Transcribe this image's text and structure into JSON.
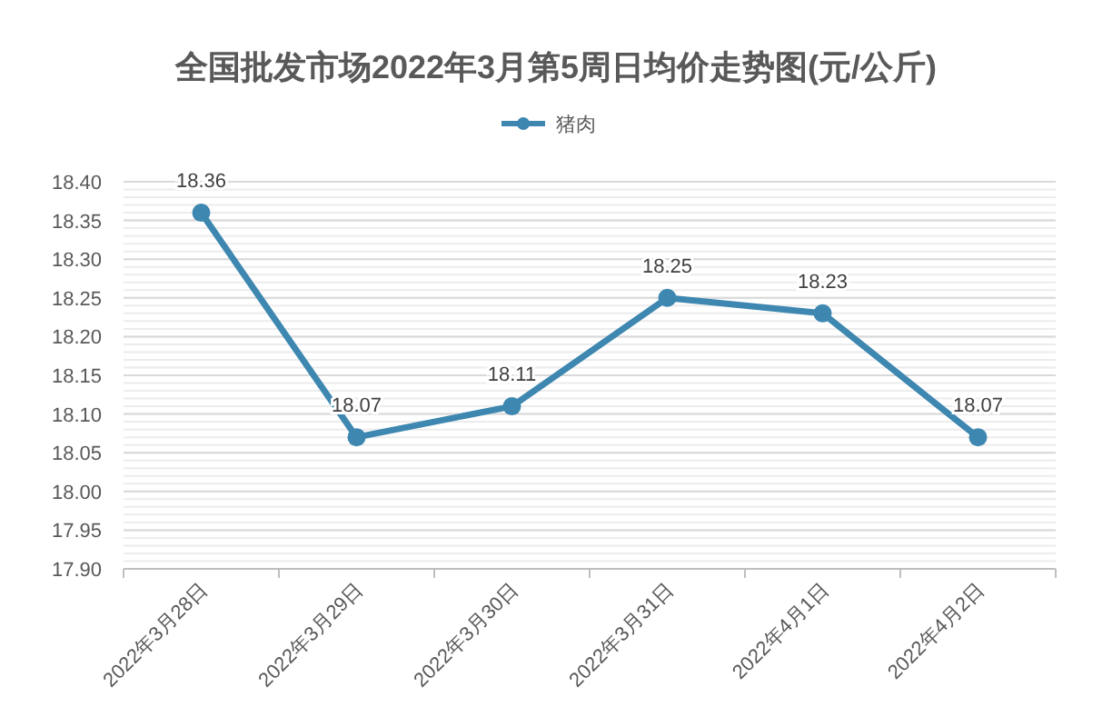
{
  "chart_data": {
    "type": "line",
    "title": "全国批发市场2022年3月第5周日均价走势图(元/公斤)",
    "categories": [
      "2022年3月28日",
      "2022年3月29日",
      "2022年3月30日",
      "2022年3月31日",
      "2022年4月1日",
      "2022年4月2日"
    ],
    "series": [
      {
        "name": "猪肉",
        "color": "#3d87b0",
        "values": [
          18.36,
          18.07,
          18.11,
          18.25,
          18.23,
          18.07
        ]
      }
    ],
    "ylim": [
      17.9,
      18.4
    ],
    "yticks": [
      {
        "value": 17.9,
        "label": "17.90"
      },
      {
        "value": 17.95,
        "label": "17.95"
      },
      {
        "value": 18.0,
        "label": "18.00"
      },
      {
        "value": 18.05,
        "label": "18.05"
      },
      {
        "value": 18.1,
        "label": "18.10"
      },
      {
        "value": 18.15,
        "label": "18.15"
      },
      {
        "value": 18.2,
        "label": "18.20"
      },
      {
        "value": 18.25,
        "label": "18.25"
      },
      {
        "value": 18.3,
        "label": "18.30"
      },
      {
        "value": 18.35,
        "label": "18.35"
      },
      {
        "value": 18.4,
        "label": "18.40"
      }
    ],
    "grid": "y",
    "legend": "top",
    "marker": "circle",
    "line_style": "solid",
    "data_labels": true
  }
}
